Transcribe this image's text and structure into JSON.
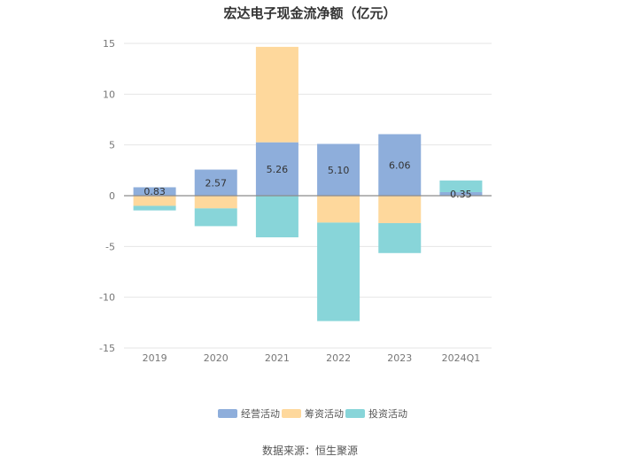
{
  "chart_data": {
    "type": "bar",
    "stacked": true,
    "title": "宏达电子现金流净额（亿元）",
    "categories": [
      "2019",
      "2020",
      "2021",
      "2022",
      "2023",
      "2024Q1"
    ],
    "series": [
      {
        "name": "经营活动",
        "color": "#8eaedb",
        "values": [
          0.83,
          2.57,
          5.26,
          5.1,
          6.06,
          0.35
        ]
      },
      {
        "name": "筹资活动",
        "color": "#fed89c",
        "values": [
          -1.0,
          -1.25,
          9.4,
          -2.65,
          -2.7,
          0.0
        ]
      },
      {
        "name": "投资活动",
        "color": "#88d5d9",
        "values": [
          -0.45,
          -1.75,
          -4.1,
          -9.7,
          -2.95,
          1.15
        ]
      }
    ],
    "data_labels": [
      "0.83",
      "2.57",
      "5.26",
      "5.10",
      "6.06",
      "0.35"
    ],
    "ylim": [
      -15,
      15
    ],
    "yticks": [
      15,
      10,
      5,
      0,
      -5,
      -10,
      -15
    ],
    "grid": true,
    "legend": "bottom",
    "source": "数据来源：恒生聚源"
  }
}
